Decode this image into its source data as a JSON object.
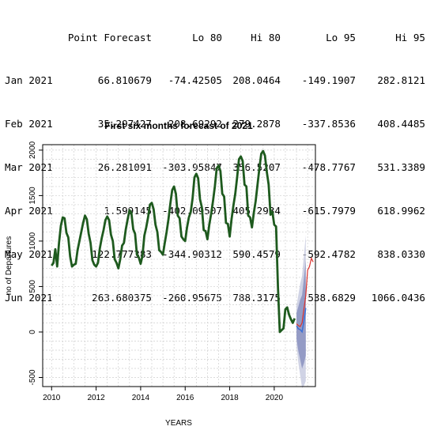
{
  "console_table": {
    "headers": [
      "",
      "Point Forecast",
      "Lo 80",
      "Hi 80",
      "Lo 95",
      "Hi 95"
    ],
    "rows": [
      [
        "Jan 2021",
        "66.810679",
        "-74.42505",
        "208.0464",
        "-149.1907",
        "282.8121"
      ],
      [
        "Feb 2021",
        "35.297427",
        "-208.69292",
        "279.2878",
        "-337.8536",
        "408.4485"
      ],
      [
        "Mar 2021",
        "26.281091",
        "-303.95847",
        "356.5207",
        "-478.7767",
        "531.3389"
      ],
      [
        "Apr 2021",
        "1.599145",
        "-402.09507",
        "405.2934",
        "-615.7979",
        "618.9962"
      ],
      [
        "May 2021",
        "122.777383",
        "-344.90312",
        "590.4579",
        "-592.4782",
        "838.0330"
      ],
      [
        "Jun 2021",
        "263.680375",
        "-260.95675",
        "788.3175",
        "-538.6829",
        "1066.0436"
      ]
    ]
  },
  "chart_data": {
    "type": "line",
    "title": "First six months forecast of 2021",
    "xlabel": "YEARS",
    "ylabel": "no of Departures",
    "xlim": [
      2009.6,
      2021.85
    ],
    "ylim": [
      -600,
      2060
    ],
    "x_ticks": [
      "2010",
      "2012",
      "2014",
      "2016",
      "2018",
      "2020"
    ],
    "y_ticks": [
      "-500",
      "0",
      "500",
      "1000",
      "1500",
      "2000"
    ],
    "grid": true,
    "history_color": "#1e5a1e",
    "forecast_color": "#3b6fd6",
    "band80_color": "#8a90c0",
    "band95_color": "#c8cbe0",
    "actual_color": "#d9302c",
    "history": {
      "name": "observed",
      "x_start": 2010.0,
      "step": 0.08333,
      "values": [
        730,
        760,
        910,
        720,
        980,
        1170,
        1260,
        1250,
        1090,
        1040,
        830,
        720,
        740,
        750,
        900,
        1000,
        1100,
        1200,
        1280,
        1240,
        1080,
        980,
        790,
        740,
        720,
        760,
        920,
        1030,
        1120,
        1230,
        1270,
        1230,
        1070,
        1000,
        800,
        760,
        700,
        800,
        950,
        980,
        1130,
        1240,
        1340,
        1310,
        1130,
        1080,
        850,
        820,
        750,
        840,
        1060,
        1150,
        1260,
        1400,
        1420,
        1350,
        1180,
        1100,
        900,
        880,
        850,
        980,
        1100,
        1240,
        1410,
        1560,
        1600,
        1520,
        1280,
        1250,
        1050,
        1020,
        1000,
        1150,
        1260,
        1320,
        1470,
        1700,
        1740,
        1690,
        1460,
        1370,
        1120,
        1110,
        1020,
        1180,
        1300,
        1440,
        1600,
        1800,
        1830,
        1770,
        1520,
        1490,
        1200,
        1190,
        1050,
        1240,
        1390,
        1520,
        1700,
        1900,
        1930,
        1880,
        1620,
        1600,
        1280,
        1260,
        1150,
        1310,
        1440,
        1620,
        1800,
        1960,
        1990,
        1940,
        1760,
        1620,
        1290,
        1320,
        1180,
        1160,
        500,
        0,
        20,
        40,
        250,
        270,
        190,
        140,
        100,
        150
      ]
    },
    "forecast": {
      "months": [
        "Jan 2021",
        "Feb 2021",
        "Mar 2021",
        "Apr 2021",
        "May 2021",
        "Jun 2021"
      ],
      "x": [
        2021.0,
        2021.083,
        2021.167,
        2021.25,
        2021.333,
        2021.417
      ],
      "point": [
        66.810679,
        35.297427,
        26.281091,
        1.599145,
        122.777383,
        263.680375
      ],
      "lo80": [
        -74.42505,
        -208.69292,
        -303.95847,
        -402.09507,
        -344.90312,
        -260.95675
      ],
      "hi80": [
        208.0464,
        279.2878,
        356.5207,
        405.2934,
        590.4579,
        788.3175
      ],
      "lo95": [
        -149.1907,
        -337.8536,
        -478.7767,
        -615.7979,
        -592.4782,
        -538.6829
      ],
      "hi95": [
        282.8121,
        408.4485,
        531.3389,
        618.9962,
        838.033,
        1066.0436
      ]
    },
    "actual": {
      "x_start": 2021.0,
      "step": 0.08333,
      "values": [
        90,
        70,
        60,
        100,
        250,
        400,
        680,
        720,
        810,
        770
      ]
    }
  }
}
